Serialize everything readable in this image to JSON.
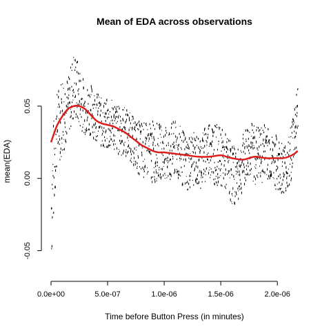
{
  "chart_data": {
    "type": "line",
    "title": "Mean of EDA across observations",
    "xlabel": "Time before Button Press (in minutes)",
    "ylabel": "mean(EDA)",
    "xlim": [
      0,
      2.2e-06
    ],
    "ylim": [
      -0.065,
      0.09
    ],
    "x_ticks": [
      {
        "value": 0,
        "label": "0.0e+00"
      },
      {
        "value": 5e-07,
        "label": "5.0e-07"
      },
      {
        "value": 1e-06,
        "label": "1.0e-06"
      },
      {
        "value": 1.5e-06,
        "label": "1.5e-06"
      },
      {
        "value": 2e-06,
        "label": "2.0e-06"
      }
    ],
    "y_ticks": [
      {
        "value": -0.05,
        "label": "-0.05"
      },
      {
        "value": 0.0,
        "label": "0.00"
      },
      {
        "value": 0.05,
        "label": "0.05"
      }
    ],
    "grid": false,
    "legend": "none",
    "series": [
      {
        "style": "raw-points",
        "color": "#000000",
        "x": [
          0,
          5e-08,
          1e-07,
          1.5e-07,
          2e-07,
          2.5e-07,
          3e-07,
          3.5e-07,
          4e-07,
          4.5e-07,
          5e-07,
          5.5e-07,
          6e-07,
          6.5e-07,
          7e-07,
          7.5e-07,
          8e-07,
          8.5e-07,
          9e-07,
          9.5e-07,
          1e-06,
          1.05e-06,
          1.1e-06,
          1.15e-06,
          1.2e-06,
          1.25e-06,
          1.3e-06,
          1.35e-06,
          1.4e-06,
          1.45e-06,
          1.5e-06,
          1.55e-06,
          1.6e-06,
          1.65e-06,
          1.7e-06,
          1.75e-06,
          1.8e-06,
          1.85e-06,
          1.9e-06,
          1.95e-06,
          2e-06,
          2.05e-06,
          2.1e-06,
          2.15e-06,
          2.18e-06
        ],
        "y": [
          -0.02,
          0.035,
          0.045,
          0.05,
          0.065,
          0.055,
          0.045,
          0.05,
          0.045,
          0.04,
          0.035,
          0.038,
          0.034,
          0.035,
          0.03,
          0.025,
          0.022,
          0.02,
          0.018,
          0.02,
          0.015,
          0.02,
          0.022,
          0.015,
          0.01,
          0.016,
          0.012,
          0.018,
          0.025,
          0.02,
          0.015,
          0.01,
          0.005,
          0.002,
          0.015,
          0.022,
          0.02,
          0.018,
          0.025,
          0.015,
          0.01,
          0.005,
          0.008,
          0.035,
          0.05
        ],
        "y_min": [
          -0.06,
          0.01,
          0.015,
          0.03,
          0.04,
          0.035,
          0.03,
          0.03,
          0.025,
          0.02,
          0.018,
          0.02,
          0.015,
          0.015,
          0.012,
          0.005,
          0.0,
          0.0,
          -0.005,
          0.0,
          0.0,
          -0.005,
          0.0,
          -0.005,
          -0.01,
          -0.005,
          -0.008,
          -0.005,
          0.0,
          -0.005,
          -0.005,
          -0.01,
          -0.02,
          -0.015,
          -0.008,
          0.0,
          -0.005,
          -0.005,
          0.0,
          -0.005,
          -0.01,
          -0.01,
          -0.01,
          0.01,
          0.03
        ],
        "y_max": [
          0.03,
          0.06,
          0.075,
          0.07,
          0.09,
          0.078,
          0.065,
          0.065,
          0.06,
          0.055,
          0.055,
          0.055,
          0.05,
          0.05,
          0.045,
          0.04,
          0.04,
          0.038,
          0.04,
          0.038,
          0.035,
          0.038,
          0.04,
          0.035,
          0.03,
          0.032,
          0.03,
          0.035,
          0.042,
          0.038,
          0.035,
          0.03,
          0.025,
          0.02,
          0.032,
          0.04,
          0.038,
          0.035,
          0.04,
          0.03,
          0.03,
          0.025,
          0.03,
          0.055,
          0.068
        ]
      },
      {
        "style": "smooth-line",
        "color": "#dd1c1c",
        "x": [
          0,
          5e-08,
          1e-07,
          1.5e-07,
          2e-07,
          2.5e-07,
          3e-07,
          3.5e-07,
          4e-07,
          4.5e-07,
          5e-07,
          5.5e-07,
          6e-07,
          6.5e-07,
          7e-07,
          7.5e-07,
          8e-07,
          8.5e-07,
          9e-07,
          9.5e-07,
          1e-06,
          1.1e-06,
          1.2e-06,
          1.3e-06,
          1.4e-06,
          1.5e-06,
          1.55e-06,
          1.6e-06,
          1.7e-06,
          1.8e-06,
          1.9e-06,
          2e-06,
          2.05e-06,
          2.1e-06,
          2.15e-06,
          2.18e-06
        ],
        "y": [
          0.025,
          0.036,
          0.043,
          0.048,
          0.05,
          0.05,
          0.048,
          0.044,
          0.04,
          0.038,
          0.037,
          0.036,
          0.034,
          0.032,
          0.029,
          0.026,
          0.023,
          0.021,
          0.019,
          0.018,
          0.018,
          0.017,
          0.016,
          0.015,
          0.015,
          0.016,
          0.015,
          0.014,
          0.013,
          0.015,
          0.014,
          0.014,
          0.014,
          0.015,
          0.017,
          0.019
        ]
      }
    ]
  }
}
